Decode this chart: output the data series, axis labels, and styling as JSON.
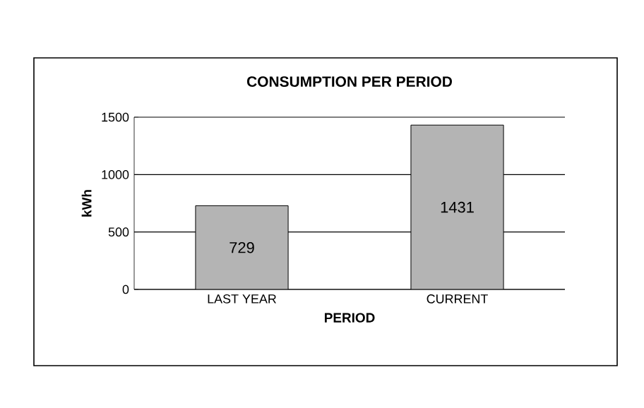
{
  "chart_data": {
    "type": "bar",
    "title": "CONSUMPTION PER PERIOD",
    "xlabel": "PERIOD",
    "ylabel": "kWh",
    "categories": [
      "LAST YEAR",
      "CURRENT"
    ],
    "values": [
      729,
      1431
    ],
    "color": "#b4b4b4",
    "ylim": [
      0,
      1500
    ],
    "yticks": [
      0,
      500,
      1000,
      1500
    ],
    "grid": "y",
    "data_labels": true
  }
}
